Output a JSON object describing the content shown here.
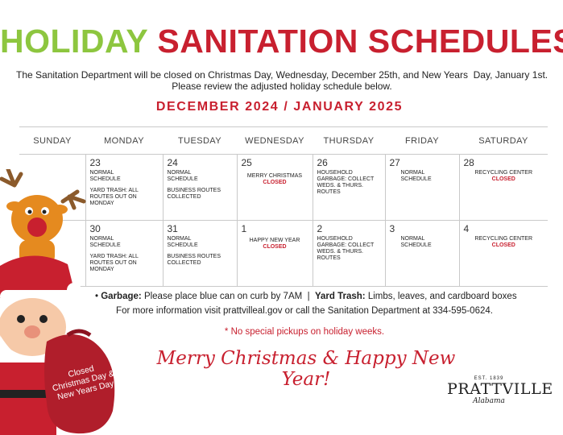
{
  "title": {
    "part1": "HOLIDAY",
    "part2": "SANITATION SCHEDULES"
  },
  "intro": {
    "line1": "The Sanitation Department will be closed on Christmas Day, Wednesday, December 25th, and New Years  Day, January 1st.",
    "line2": "Please review the adjusted holiday schedule below."
  },
  "month_heading": "DECEMBER 2024 / JANUARY 2025",
  "weekdays": [
    "SUNDAY",
    "MONDAY",
    "TUESDAY",
    "WEDNESDAY",
    "THURSDAY",
    "FRIDAY",
    "SATURDAY"
  ],
  "weeks": [
    {
      "mon": {
        "day": "23",
        "note1": "NORMAL SCHEDULE",
        "note2": "YARD TRASH: ALL ROUTES OUT ON MONDAY"
      },
      "tue": {
        "day": "24",
        "note1": "NORMAL SCHEDULE",
        "note2": "BUSINESS ROUTES COLLECTED"
      },
      "wed": {
        "day": "25",
        "note1": "MERRY CHRISTMAS",
        "closed": "CLOSED"
      },
      "thu": {
        "day": "26",
        "note1": "HOUSEHOLD GARBAGE: COLLECT WEDS. & THURS. ROUTES"
      },
      "fri": {
        "day": "27",
        "note1": "NORMAL SCHEDULE"
      },
      "sat": {
        "day": "28",
        "note1": "RECYCLING CENTER",
        "closed": "CLOSED"
      }
    },
    {
      "mon": {
        "day": "30",
        "note1": "NORMAL SCHEDULE",
        "note2": "YARD TRASH: ALL ROUTES OUT ON MONDAY"
      },
      "tue": {
        "day": "31",
        "note1": "NORMAL SCHEDULE",
        "note2": "BUSINESS ROUTES COLLECTED"
      },
      "wed": {
        "day": "1",
        "note1": "HAPPY NEW YEAR",
        "closed": "CLOSED"
      },
      "thu": {
        "day": "2",
        "note1": "HOUSEHOLD GARBAGE: COLLECT WEDS. & THURS. ROUTES"
      },
      "fri": {
        "day": "3",
        "note1": "NORMAL SCHEDULE"
      },
      "sat": {
        "day": "4",
        "note1": "RECYCLING CENTER",
        "closed": "CLOSED"
      }
    }
  ],
  "info": {
    "bullet": "•",
    "garbage_label": "Garbage:",
    "garbage_text": "Please place blue can on curb by 7AM",
    "separator": "|",
    "yard_label": "Yard Trash:",
    "yard_text": "Limbs, leaves, and cardboard boxes",
    "more_info": "For more information visit prattvilleal.gov or call the Sanitation Department at 334-595-0624.",
    "no_special": "* No special pickups on holiday weeks."
  },
  "greeting": "Merry Christmas & Happy New Year!",
  "bag_text": {
    "line1": "Closed",
    "line2": "Christmas Day &",
    "line3": "New Years Day"
  },
  "logo": {
    "est": "EST. 1839",
    "name": "PRATTVILLE",
    "state": "Alabama"
  },
  "colors": {
    "green": "#8dc63f",
    "red": "#c8202f",
    "grid": "#c9c9c9"
  },
  "illustrations": [
    "reindeer-illustration",
    "santa-illustration",
    "gift-bag-illustration"
  ]
}
